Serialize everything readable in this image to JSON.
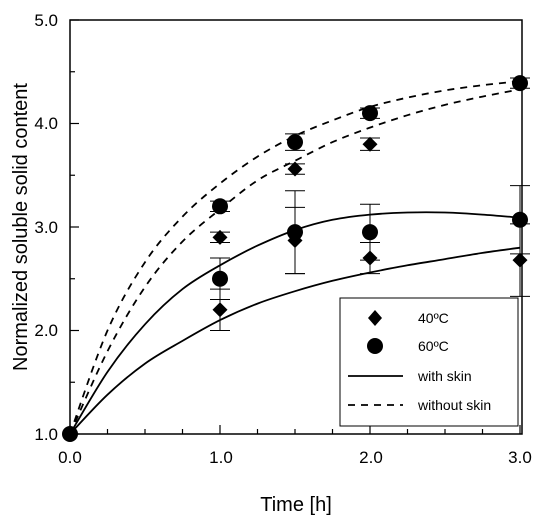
{
  "chart_data": {
    "type": "scatter",
    "title": "",
    "xlabel": "Time [h]",
    "ylabel": "Normalized soluble solid content",
    "xlim": [
      0,
      3
    ],
    "ylim": [
      1,
      5
    ],
    "x_ticks": [
      "0.0",
      "1.0",
      "2.0",
      "3.0"
    ],
    "y_ticks": [
      "1.0",
      "2.0",
      "3.0",
      "4.0",
      "5.0"
    ],
    "grid": false,
    "legend_position": "bottom-right",
    "series": [
      {
        "name": "40ºC",
        "kind": "points",
        "marker": "diamond",
        "points": [
          {
            "x": 0.0,
            "y": 1.0,
            "err": 0.0
          },
          {
            "x": 1.0,
            "y": 2.2,
            "err": 0.2
          },
          {
            "x": 1.0,
            "y": 2.9,
            "err": 0.05
          },
          {
            "x": 1.5,
            "y": 2.87,
            "err": 0.32
          },
          {
            "x": 1.5,
            "y": 3.56,
            "err": 0.05
          },
          {
            "x": 2.0,
            "y": 2.7,
            "err": 0.15
          },
          {
            "x": 2.0,
            "y": 3.8,
            "err": 0.06
          },
          {
            "x": 3.0,
            "y": 2.68,
            "err": 0.35
          }
        ]
      },
      {
        "name": "60ºC",
        "kind": "points",
        "marker": "circle",
        "points": [
          {
            "x": 0.0,
            "y": 1.0,
            "err": 0.0
          },
          {
            "x": 1.0,
            "y": 2.5,
            "err": 0.2
          },
          {
            "x": 1.0,
            "y": 3.2,
            "err": 0.05
          },
          {
            "x": 1.5,
            "y": 2.95,
            "err": 0.4
          },
          {
            "x": 1.5,
            "y": 3.82,
            "err": 0.08
          },
          {
            "x": 2.0,
            "y": 2.95,
            "err": 0.27
          },
          {
            "x": 2.0,
            "y": 4.1,
            "err": 0.05
          },
          {
            "x": 3.0,
            "y": 3.07,
            "err": 0.33
          },
          {
            "x": 3.0,
            "y": 4.39,
            "err": 0.05
          }
        ]
      },
      {
        "name": "with skin",
        "kind": "curve",
        "style": "solid",
        "curves": [
          [
            [
              0,
              1.0
            ],
            [
              0.25,
              1.38
            ],
            [
              0.5,
              1.68
            ],
            [
              0.75,
              1.9
            ],
            [
              1.0,
              2.1
            ],
            [
              1.25,
              2.26
            ],
            [
              1.5,
              2.38
            ],
            [
              1.75,
              2.48
            ],
            [
              2.0,
              2.56
            ],
            [
              2.25,
              2.63
            ],
            [
              2.5,
              2.69
            ],
            [
              2.75,
              2.75
            ],
            [
              3.0,
              2.8
            ]
          ],
          [
            [
              0,
              1.0
            ],
            [
              0.25,
              1.6
            ],
            [
              0.5,
              2.06
            ],
            [
              0.75,
              2.4
            ],
            [
              1.0,
              2.63
            ],
            [
              1.25,
              2.82
            ],
            [
              1.5,
              2.97
            ],
            [
              1.75,
              3.07
            ],
            [
              2.0,
              3.12
            ],
            [
              2.25,
              3.14
            ],
            [
              2.5,
              3.14
            ],
            [
              2.75,
              3.12
            ],
            [
              3.0,
              3.09
            ]
          ]
        ]
      },
      {
        "name": "without skin",
        "kind": "curve",
        "style": "dashed",
        "curves": [
          [
            [
              0,
              1.0
            ],
            [
              0.25,
              1.8
            ],
            [
              0.5,
              2.42
            ],
            [
              0.75,
              2.86
            ],
            [
              1.0,
              3.17
            ],
            [
              1.25,
              3.45
            ],
            [
              1.5,
              3.64
            ],
            [
              1.75,
              3.82
            ],
            [
              2.0,
              3.96
            ],
            [
              2.25,
              4.08
            ],
            [
              2.5,
              4.18
            ],
            [
              2.75,
              4.26
            ],
            [
              3.0,
              4.33
            ]
          ],
          [
            [
              0,
              1.0
            ],
            [
              0.25,
              2.0
            ],
            [
              0.5,
              2.66
            ],
            [
              0.75,
              3.1
            ],
            [
              1.0,
              3.42
            ],
            [
              1.25,
              3.68
            ],
            [
              1.5,
              3.88
            ],
            [
              1.75,
              4.03
            ],
            [
              2.0,
              4.16
            ],
            [
              2.25,
              4.25
            ],
            [
              2.5,
              4.32
            ],
            [
              2.75,
              4.37
            ],
            [
              3.0,
              4.41
            ]
          ]
        ]
      }
    ]
  }
}
